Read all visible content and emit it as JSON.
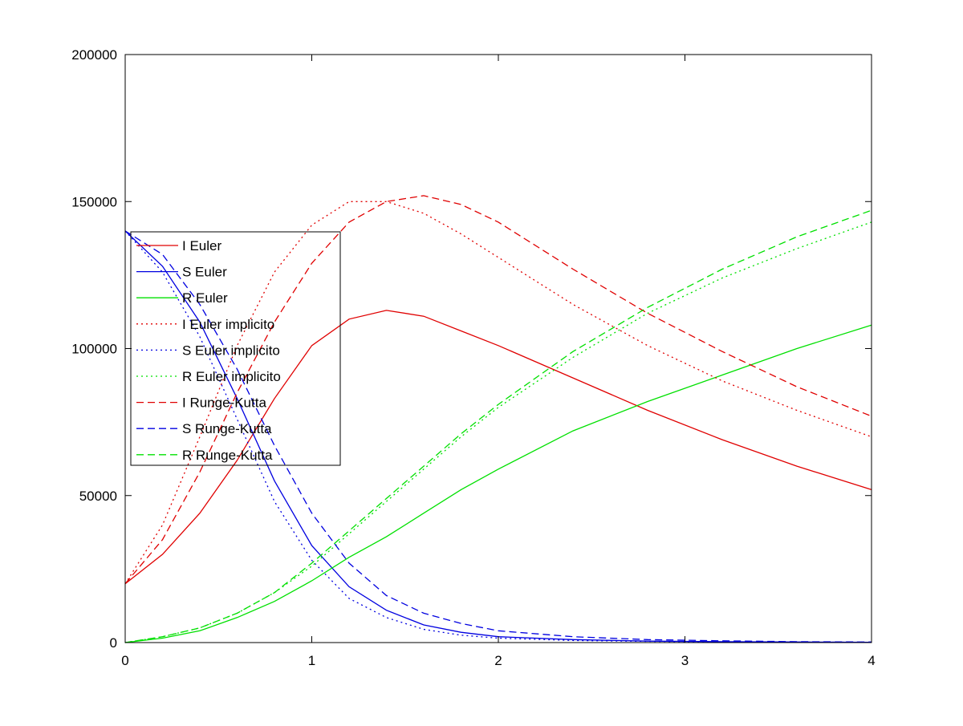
{
  "chart_data": {
    "type": "line",
    "title": "",
    "xlabel": "",
    "ylabel": "",
    "xlim": [
      0,
      4
    ],
    "ylim": [
      0,
      200000
    ],
    "x_ticks": [
      0,
      1,
      2,
      3,
      4
    ],
    "y_ticks": [
      0,
      50000,
      100000,
      150000,
      200000
    ],
    "x_tick_labels": [
      "0",
      "1",
      "2",
      "3",
      "4"
    ],
    "y_tick_labels": [
      "0",
      "50000",
      "100000",
      "150000",
      "200000"
    ],
    "grid": false,
    "legend_position": "upper-left",
    "colors": {
      "I": "#e00000",
      "S": "#0000e0",
      "R": "#00e000"
    },
    "series": [
      {
        "name": "I Euler",
        "color": "#e00000",
        "dash": "solid",
        "x": [
          0,
          0.2,
          0.4,
          0.6,
          0.8,
          1.0,
          1.2,
          1.4,
          1.6,
          1.8,
          2.0,
          2.4,
          2.8,
          3.2,
          3.6,
          4.0
        ],
        "y": [
          20000,
          30000,
          44000,
          62000,
          83000,
          101000,
          110000,
          113000,
          111000,
          106000,
          101000,
          90000,
          79000,
          69000,
          60000,
          52000
        ]
      },
      {
        "name": "S Euler",
        "color": "#0000e0",
        "dash": "solid",
        "x": [
          0,
          0.2,
          0.4,
          0.6,
          0.8,
          1.0,
          1.2,
          1.4,
          1.6,
          1.8,
          2.0,
          2.4,
          2.8,
          3.2,
          3.6,
          4.0
        ],
        "y": [
          140000,
          128000,
          109000,
          83000,
          55000,
          33000,
          19000,
          11000,
          6000,
          3500,
          2000,
          1000,
          500,
          300,
          200,
          100
        ]
      },
      {
        "name": "R Euler",
        "color": "#00e000",
        "dash": "solid",
        "x": [
          0,
          0.2,
          0.4,
          0.6,
          0.8,
          1.0,
          1.2,
          1.4,
          1.6,
          1.8,
          2.0,
          2.4,
          2.8,
          3.2,
          3.6,
          4.0
        ],
        "y": [
          0,
          1500,
          4000,
          8500,
          14000,
          21000,
          29000,
          36000,
          44000,
          52000,
          59000,
          72000,
          82000,
          91000,
          100000,
          108000
        ]
      },
      {
        "name": "I Euler implicito",
        "color": "#e00000",
        "dash": "dotted",
        "x": [
          0,
          0.2,
          0.4,
          0.6,
          0.8,
          1.0,
          1.2,
          1.4,
          1.6,
          1.8,
          2.0,
          2.4,
          2.8,
          3.2,
          3.6,
          4.0
        ],
        "y": [
          20000,
          40000,
          70000,
          101000,
          126000,
          142000,
          150000,
          150000,
          146000,
          139000,
          131000,
          115000,
          101000,
          89000,
          79000,
          70000
        ]
      },
      {
        "name": "S Euler implicito",
        "color": "#0000e0",
        "dash": "dotted",
        "x": [
          0,
          0.2,
          0.4,
          0.6,
          0.8,
          1.0,
          1.2,
          1.4,
          1.6,
          1.8,
          2.0,
          2.4,
          2.8,
          3.2,
          3.6,
          4.0
        ],
        "y": [
          140000,
          126000,
          104000,
          76000,
          48000,
          28000,
          15000,
          8500,
          4500,
          2500,
          1500,
          700,
          400,
          250,
          150,
          100
        ]
      },
      {
        "name": "R Euler implicito",
        "color": "#00e000",
        "dash": "dotted",
        "x": [
          0,
          0.2,
          0.4,
          0.6,
          0.8,
          1.0,
          1.2,
          1.4,
          1.6,
          1.8,
          2.0,
          2.4,
          2.8,
          3.2,
          3.6,
          4.0
        ],
        "y": [
          0,
          2000,
          5000,
          10000,
          17000,
          26000,
          37000,
          48000,
          59000,
          70000,
          80000,
          97000,
          112000,
          124000,
          134000,
          143000
        ]
      },
      {
        "name": "I Runge-Kutta",
        "color": "#e00000",
        "dash": "dashed",
        "x": [
          0,
          0.2,
          0.4,
          0.6,
          0.8,
          1.0,
          1.2,
          1.4,
          1.6,
          1.8,
          2.0,
          2.4,
          2.8,
          3.2,
          3.6,
          4.0
        ],
        "y": [
          20000,
          35000,
          58000,
          85000,
          109000,
          129000,
          143000,
          150000,
          152000,
          149000,
          143000,
          127000,
          112000,
          99000,
          87000,
          77000
        ]
      },
      {
        "name": "S Runge-Kutta",
        "color": "#0000e0",
        "dash": "dashed",
        "x": [
          0,
          0.2,
          0.4,
          0.6,
          0.8,
          1.0,
          1.2,
          1.4,
          1.6,
          1.8,
          2.0,
          2.4,
          2.8,
          3.2,
          3.6,
          4.0
        ],
        "y": [
          140000,
          132000,
          115000,
          93000,
          67000,
          44000,
          27000,
          16000,
          10000,
          6500,
          4000,
          2000,
          1000,
          600,
          300,
          200
        ]
      },
      {
        "name": "R Runge-Kutta",
        "color": "#00e000",
        "dash": "dashed",
        "x": [
          0,
          0.2,
          0.4,
          0.6,
          0.8,
          1.0,
          1.2,
          1.4,
          1.6,
          1.8,
          2.0,
          2.4,
          2.8,
          3.2,
          3.6,
          4.0
        ],
        "y": [
          0,
          2000,
          5000,
          10000,
          17000,
          27000,
          38000,
          49000,
          60000,
          71000,
          81000,
          99000,
          114000,
          127000,
          138000,
          147000
        ]
      }
    ]
  }
}
